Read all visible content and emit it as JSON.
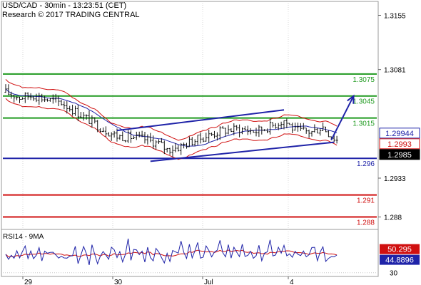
{
  "header": {
    "line1": "USD/CAD - 30min - 13:23:51 (CET)",
    "line2": "Research © 2017 TRADING CENTRAL"
  },
  "chart_data": {
    "type": "candlestick",
    "symbol": "USD/CAD",
    "timeframe": "30min",
    "x_tick_labels": [
      "29",
      "30",
      "Jul",
      "4"
    ],
    "price_axis": {
      "tick_labels": [
        "1.3155",
        "1.3081",
        "1.2933",
        "1.288"
      ],
      "ylim": [
        1.2865,
        1.3172
      ]
    },
    "levels": [
      {
        "label": "1.3075",
        "value": 1.3075,
        "color": "#1f9a1f"
      },
      {
        "label": "1.3045",
        "value": 1.3045,
        "color": "#1f9a1f"
      },
      {
        "label": "1.3015",
        "value": 1.3015,
        "color": "#1f9a1f"
      },
      {
        "label": "1.296",
        "value": 1.296,
        "color": "#1f23a8"
      },
      {
        "label": "1.291",
        "value": 1.291,
        "color": "#d01010"
      },
      {
        "label": "1.288",
        "value": 1.288,
        "color": "#d01010"
      }
    ],
    "price_badges": [
      {
        "label": "1.29944",
        "value": 1.29944,
        "fill": "#ffffff",
        "text": "#1f23a8",
        "border": "#1f23a8"
      },
      {
        "label": "1.2993",
        "value": 1.2993,
        "fill": "#ffffff",
        "text": "#d01010",
        "border": "#d01010"
      },
      {
        "label": "1.2985",
        "value": 1.2985,
        "fill": "#000000",
        "text": "#ffffff",
        "border": "#000000"
      }
    ],
    "rsi": {
      "label": "RSI14 - 9MA",
      "tick_labels": [
        "30"
      ],
      "ylim": [
        28,
        66
      ],
      "badges": [
        {
          "label": "50.295",
          "value": 50.295,
          "fill": "#d01010",
          "text": "#ffffff"
        },
        {
          "label": "44.8896",
          "value": 44.8896,
          "fill": "#1f23a8",
          "text": "#ffffff"
        }
      ]
    },
    "candle_count": 120,
    "price_path": [
      [
        0,
        1.305
      ],
      [
        5,
        1.3043
      ],
      [
        10,
        1.3046
      ],
      [
        15,
        1.304
      ],
      [
        20,
        1.3036
      ],
      [
        25,
        1.3024
      ],
      [
        30,
        1.3012
      ],
      [
        35,
        1.3
      ],
      [
        40,
        1.299
      ],
      [
        45,
        1.2989
      ],
      [
        50,
        1.2986
      ],
      [
        55,
        1.298
      ],
      [
        58,
        1.2972
      ],
      [
        62,
        1.2975
      ],
      [
        66,
        1.2982
      ],
      [
        72,
        1.299
      ],
      [
        78,
        1.2998
      ],
      [
        84,
        1.3
      ],
      [
        90,
        1.2997
      ],
      [
        96,
        1.3005
      ],
      [
        100,
        1.3012
      ],
      [
        104,
        1.2998
      ],
      [
        110,
        1.2996
      ],
      [
        114,
        1.3003
      ],
      [
        117,
        1.299
      ],
      [
        119,
        1.2985
      ]
    ],
    "indicators": {
      "moving_average": {
        "color": "#1f23a8"
      },
      "bands": {
        "color": "#d01010"
      },
      "channel": {
        "color": "#1f23a8",
        "upper": [
          [
            40,
            1.2998
          ],
          [
            100,
            1.3026
          ]
        ],
        "lower": [
          [
            52,
            1.2956
          ],
          [
            118,
            1.2982
          ]
        ]
      },
      "projection_arrow": {
        "color": "#1f23a8",
        "from": [
          117,
          1.2985
        ],
        "to": [
          125,
          1.3045
        ]
      }
    }
  }
}
